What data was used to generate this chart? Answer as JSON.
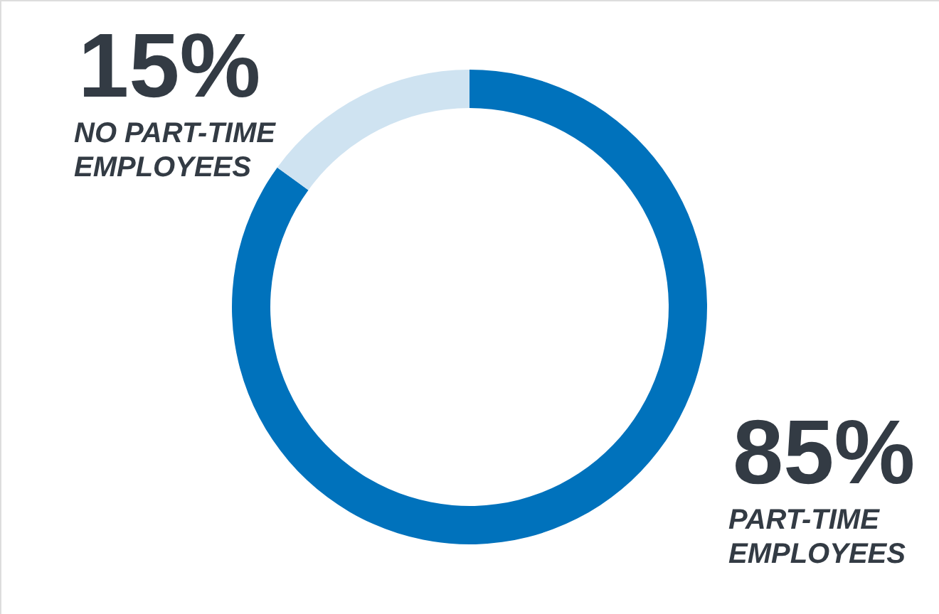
{
  "chart_data": {
    "type": "donut",
    "categories": [
      "PART-TIME EMPLOYEES",
      "NO PART-TIME EMPLOYEES"
    ],
    "values": [
      85,
      15
    ],
    "colors": [
      "#0072bc",
      "#cfe3f1"
    ],
    "value_labels": [
      "85%",
      "15%"
    ]
  }
}
